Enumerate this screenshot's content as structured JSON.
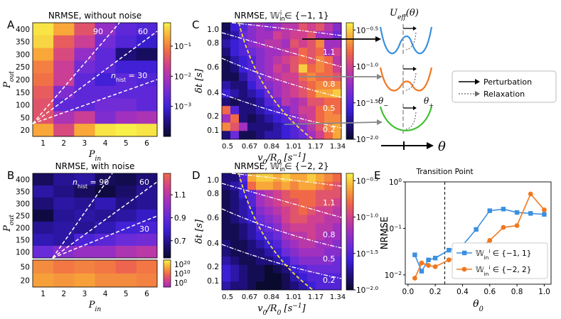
{
  "colors": {
    "heat_stops": [
      "#0a0a2e",
      "#1f0f7a",
      "#3b1fd6",
      "#6a2bd8",
      "#a030c0",
      "#d04090",
      "#f06848",
      "#f8a838",
      "#f8f048"
    ],
    "dashed_line": "#ffffff",
    "yellow_line": "#f0e040",
    "blue_series": "#3a90e0",
    "orange_series": "#f07820",
    "arrow_gray": "#8a8a8a"
  },
  "chart_data": [
    {
      "id": "A",
      "type": "heatmap",
      "panel_letter": "A",
      "title": "NRMSE, without noise",
      "xlabel": "P",
      "xlabel_sub": "in",
      "ylabel": "P",
      "ylabel_sub": "out",
      "x_ticks": [
        "1",
        "2",
        "3",
        "4",
        "5",
        "6"
      ],
      "y_ticks": [
        "20",
        "50",
        "100",
        "150",
        "200",
        "250",
        "300",
        "350",
        "400"
      ],
      "colorbar_ticks": [
        "10^-1",
        "10^-2",
        "10^-3"
      ],
      "colorbar_scale": "log",
      "colorbar_range": [
        0.0001,
        0.6
      ],
      "line_labels": [
        "90",
        "60",
        "n_hist = 30"
      ],
      "values": [
        [
          0.5,
          0.2,
          0.04,
          0.006,
          0.002,
          0.0015
        ],
        [
          0.4,
          0.05,
          0.02,
          0.003,
          0.0015,
          0.0008
        ],
        [
          0.2,
          0.03,
          0.006,
          0.002,
          0.0003,
          0.0002
        ],
        [
          0.1,
          0.02,
          0.003,
          0.002,
          0.001,
          0.001
        ],
        [
          0.08,
          0.02,
          0.002,
          0.001,
          0.002,
          0.0015
        ],
        [
          0.05,
          0.004,
          0.002,
          0.002,
          0.002,
          0.002
        ],
        [
          0.04,
          0.002,
          0.002,
          0.003,
          0.003,
          0.002
        ],
        [
          0.04,
          0.01,
          0.02,
          0.004,
          0.008,
          0.01
        ],
        [
          0.2,
          0.03,
          0.2,
          0.5,
          0.6,
          0.5
        ]
      ]
    },
    {
      "id": "B",
      "type": "heatmap",
      "panel_letter": "B",
      "title": "NRMSE, with noise",
      "xlabel": "P",
      "xlabel_sub": "in",
      "ylabel": "P",
      "ylabel_sub": "out",
      "x_ticks": [
        "1",
        "2",
        "3",
        "4",
        "5",
        "6"
      ],
      "y_ticks_top": [
        "100",
        "150",
        "200",
        "250",
        "300",
        "350",
        "400"
      ],
      "y_ticks_bottom": [
        "20",
        "50"
      ],
      "colorbar_ticks_top": [
        "1.1",
        "0.9",
        "0.7"
      ],
      "colorbar_ticks_bottom": [
        "10^20",
        "10^10",
        "10^0"
      ],
      "colorbar_range_top": [
        0.55,
        1.25
      ],
      "colorbar_range_bottom": [
        0,
        25
      ],
      "line_labels": [
        "n_hist = 90",
        "60",
        "30"
      ],
      "values_top": [
        [
          0.62,
          0.7,
          0.72,
          0.62,
          0.6,
          0.66
        ],
        [
          0.72,
          0.68,
          0.62,
          0.58,
          0.64,
          0.7
        ],
        [
          0.66,
          0.72,
          0.7,
          0.74,
          0.68,
          0.7
        ],
        [
          0.58,
          0.7,
          0.72,
          0.7,
          0.72,
          0.76
        ],
        [
          0.7,
          0.72,
          0.7,
          0.74,
          0.8,
          0.82
        ],
        [
          0.74,
          0.72,
          0.82,
          0.86,
          0.9,
          0.92
        ],
        [
          0.9,
          0.96,
          1.0,
          1.0,
          1.05,
          1.08
        ]
      ],
      "values_bottom": [
        [
          16,
          14,
          15,
          14,
          12,
          14
        ],
        [
          18,
          17,
          18,
          16,
          16,
          15
        ]
      ]
    },
    {
      "id": "C",
      "type": "heatmap",
      "panel_letter": "C",
      "title_prefix": "NRMSE, ",
      "title_math": "W_in^i ∈ {−1, 1}",
      "xlabel": "v0/R0 [s^-1]",
      "ylabel": "δt [s]",
      "x_ticks": [
        "0.5",
        "0.67",
        "0.84",
        "1.01",
        "1.17",
        "1.34"
      ],
      "y_ticks": [
        "0.1",
        "0.2",
        "0.4",
        "0.6",
        "0.8",
        "1.0"
      ],
      "colorbar_ticks": [
        "10^-0.5",
        "10^-1.0",
        "10^-1.5",
        "10^-2.0"
      ],
      "colorbar_range_log": [
        -2.0,
        -0.4
      ],
      "line_labels": [
        "1.1",
        "0.8",
        "0.5",
        "0.2"
      ],
      "values_log": [
        [
          -1.9,
          -1.6,
          -1.5,
          -1.3,
          -1.2,
          -1.3,
          -1.2,
          -1.1,
          -1.1,
          -0.9,
          -1.0,
          -0.9,
          -1.1,
          -1.3
        ],
        [
          -1.8,
          -1.7,
          -1.4,
          -1.3,
          -1.2,
          -1.2,
          -1.0,
          -1.1,
          -1.0,
          -1.0,
          -0.9,
          -1.2,
          -1.2,
          -1.4
        ],
        [
          -1.7,
          -1.6,
          -1.5,
          -1.3,
          -1.2,
          -1.1,
          -1.1,
          -1.2,
          -0.9,
          -1.0,
          -0.9,
          -0.7,
          -1.2,
          -1.2
        ],
        [
          -1.8,
          -1.6,
          -1.5,
          -1.4,
          -1.3,
          -1.2,
          -1.2,
          -1.1,
          -1.0,
          -0.8,
          -0.9,
          -0.8,
          -1.2,
          -1.0
        ],
        [
          -1.9,
          -1.7,
          -1.6,
          -1.5,
          -1.3,
          -1.2,
          -1.1,
          -1.0,
          -0.9,
          -0.8,
          -0.9,
          -0.7,
          -0.8,
          -1.1
        ],
        [
          -1.9,
          -1.8,
          -1.6,
          -1.5,
          -1.3,
          -1.2,
          -1.0,
          -1.1,
          -0.9,
          -0.5,
          -0.8,
          -0.7,
          -0.8,
          -1.0
        ],
        [
          -1.9,
          -1.9,
          -1.7,
          -1.5,
          -1.4,
          -1.2,
          -1.1,
          -1.0,
          -1.0,
          -0.8,
          -0.7,
          -0.8,
          -0.8,
          -0.9
        ],
        [
          -1.7,
          -1.8,
          -1.8,
          -1.6,
          -1.4,
          -1.3,
          -1.2,
          -1.1,
          -1.0,
          -0.9,
          -0.8,
          -0.7,
          -0.7,
          -0.7
        ],
        [
          -1.6,
          -1.7,
          -1.8,
          -1.7,
          -1.6,
          -1.4,
          -1.2,
          -1.1,
          -1.0,
          -0.9,
          -0.8,
          -0.6,
          -0.6,
          -0.5
        ],
        [
          -1.8,
          -1.9,
          -1.8,
          -1.8,
          -1.7,
          -1.5,
          -1.4,
          -1.1,
          -1.2,
          -1.1,
          -0.9,
          -0.9,
          -0.8,
          -0.8
        ],
        [
          -0.8,
          -1.5,
          -1.8,
          -1.8,
          -1.7,
          -1.6,
          -1.5,
          -1.4,
          -1.2,
          -1.0,
          -1.0,
          -0.8,
          -0.7,
          -0.8
        ],
        [
          -1.2,
          -0.8,
          -1.8,
          -1.9,
          -1.8,
          -1.7,
          -1.6,
          -1.5,
          -1.3,
          -1.1,
          -1.0,
          -0.8,
          -0.7,
          -0.7
        ],
        [
          -0.7,
          -0.9,
          -1.2,
          -1.8,
          -1.8,
          -1.8,
          -1.7,
          -1.6,
          -1.5,
          -1.3,
          -1.1,
          -0.9,
          -0.7,
          -0.6
        ],
        [
          -1.8,
          -1.4,
          -1.9,
          -1.9,
          -1.8,
          -1.7,
          -1.7,
          -1.6,
          -1.5,
          -1.4,
          -1.2,
          -1.0,
          -0.8,
          -0.6
        ]
      ]
    },
    {
      "id": "D",
      "type": "heatmap",
      "panel_letter": "D",
      "title_prefix": "NRMSE, ",
      "title_math": "W_in^i ∈ {−2, 2}",
      "xlabel": "v0/R0 [s^-1]",
      "ylabel": "δt [s]",
      "x_ticks": [
        "0.5",
        "0.67",
        "0.84",
        "1.01",
        "1.17",
        "1.34"
      ],
      "y_ticks": [
        "0.1",
        "0.2",
        "0.4",
        "0.6",
        "0.8",
        "1.0"
      ],
      "colorbar_ticks": [
        "10^-0.5",
        "10^-1.0",
        "10^-1.5",
        "10^-2.0"
      ],
      "colorbar_range_log": [
        -2.0,
        -0.4
      ],
      "line_labels": [
        "1.1",
        "0.8",
        "0.5",
        "0.2"
      ],
      "values_log": [
        [
          -1.8,
          -1.8,
          -1.5,
          -0.6,
          -0.5,
          -0.5,
          -0.6,
          -0.5,
          -0.6,
          -0.6,
          -0.5,
          -0.6,
          -0.7,
          -0.8
        ],
        [
          -1.8,
          -1.7,
          -1.6,
          -0.8,
          -0.6,
          -0.6,
          -0.7,
          -0.6,
          -0.7,
          -0.6,
          -0.6,
          -0.7,
          -0.8,
          -0.9
        ],
        [
          -1.9,
          -1.8,
          -1.6,
          -1.5,
          -1.2,
          -1.1,
          -1.0,
          -0.9,
          -0.8,
          -0.8,
          -0.8,
          -0.9,
          -0.9,
          -0.9
        ],
        [
          -1.9,
          -1.8,
          -1.7,
          -1.5,
          -1.2,
          -1.1,
          -1.0,
          -0.9,
          -0.9,
          -0.8,
          -0.8,
          -0.9,
          -0.9,
          -1.0
        ],
        [
          -1.9,
          -1.8,
          -1.7,
          -1.6,
          -1.3,
          -1.2,
          -1.1,
          -1.0,
          -0.9,
          -0.8,
          -0.9,
          -1.0,
          -1.0,
          -1.1
        ],
        [
          -1.9,
          -1.8,
          -1.7,
          -1.6,
          -1.4,
          -1.3,
          -1.2,
          -1.0,
          -0.9,
          -0.9,
          -1.0,
          -1.0,
          -1.1,
          -1.1
        ],
        [
          -1.9,
          -1.9,
          -1.8,
          -1.7,
          -1.5,
          -1.4,
          -1.3,
          -1.1,
          -1.0,
          -1.0,
          -1.0,
          -1.1,
          -1.1,
          -1.2
        ],
        [
          -1.9,
          -1.9,
          -1.8,
          -1.7,
          -1.6,
          -1.5,
          -1.4,
          -1.2,
          -1.1,
          -1.1,
          -1.0,
          -1.1,
          -1.2,
          -1.2
        ],
        [
          -1.8,
          -1.9,
          -1.9,
          -1.8,
          -1.7,
          -1.6,
          -1.5,
          -1.3,
          -1.2,
          -1.1,
          -1.1,
          -1.2,
          -1.2,
          -1.3
        ],
        [
          -1.8,
          -1.9,
          -1.9,
          -1.8,
          -1.8,
          -1.7,
          -1.6,
          -1.4,
          -1.3,
          -1.2,
          -1.2,
          -1.2,
          -1.3,
          -1.3
        ],
        [
          -1.7,
          -1.8,
          -1.9,
          -1.9,
          -1.8,
          -1.8,
          -1.7,
          -1.6,
          -1.4,
          -1.3,
          -1.3,
          -1.3,
          -1.3,
          -1.4
        ],
        [
          -1.6,
          -1.7,
          -1.8,
          -1.9,
          -1.9,
          -2.0,
          -1.9,
          -1.8,
          -1.6,
          -1.5,
          -1.4,
          -1.4,
          -1.4,
          -1.4
        ],
        [
          -1.6,
          -1.7,
          -1.8,
          -1.9,
          -1.9,
          -2.0,
          -2.0,
          -1.9,
          -1.7,
          -1.6,
          -1.5,
          -1.5,
          -1.5,
          -1.5
        ],
        [
          -1.7,
          -1.8,
          -1.8,
          -1.9,
          -2.0,
          -2.0,
          -2.0,
          -1.9,
          -1.8,
          -1.7,
          -1.6,
          -1.5,
          -1.5,
          -1.5
        ]
      ]
    },
    {
      "id": "E",
      "type": "line",
      "panel_letter": "E",
      "title": "Transition Point",
      "xlabel": "θ0",
      "ylabel": "NRMSE",
      "x_ticks": [
        "0.0",
        "0.2",
        "0.4",
        "0.6",
        "0.8",
        "1.0"
      ],
      "y_ticks": [
        "10^-2",
        "10^-1",
        "10^0"
      ],
      "xlim": [
        -0.02,
        1.05
      ],
      "ylim_log": [
        -2.2,
        0.0
      ],
      "transition_x": 0.27,
      "series": [
        {
          "name": "W_in^i ∈ {−1, 1}",
          "marker": "square",
          "x": [
            0.05,
            0.1,
            0.15,
            0.2,
            0.3,
            0.4,
            0.5,
            0.6,
            0.7,
            0.8,
            0.9,
            1.0
          ],
          "y": [
            0.027,
            0.012,
            0.021,
            0.023,
            0.034,
            0.043,
            0.095,
            0.24,
            0.26,
            0.22,
            0.21,
            0.2
          ]
        },
        {
          "name": "W_in^i ∈ {−2, 2}",
          "marker": "circle",
          "x": [
            0.05,
            0.1,
            0.15,
            0.2,
            0.3,
            0.4,
            0.5,
            0.6,
            0.7,
            0.8,
            0.9,
            1.0
          ],
          "y": [
            0.0085,
            0.018,
            0.016,
            0.015,
            0.021,
            0.026,
            0.033,
            0.055,
            0.105,
            0.115,
            0.55,
            0.25
          ]
        }
      ]
    }
  ],
  "schematic": {
    "title": "U_eff(θ)",
    "theta_label": "θ",
    "theta_minus": "θ−",
    "theta_plus": "θ+",
    "legend_perturbation": "Perturbation",
    "legend_relaxation": "Relaxation",
    "wells": [
      {
        "color": "#3a90e0",
        "shape": "double"
      },
      {
        "color": "#f07820",
        "shape": "double-shallow"
      },
      {
        "color": "#40c030",
        "shape": "single"
      }
    ]
  }
}
